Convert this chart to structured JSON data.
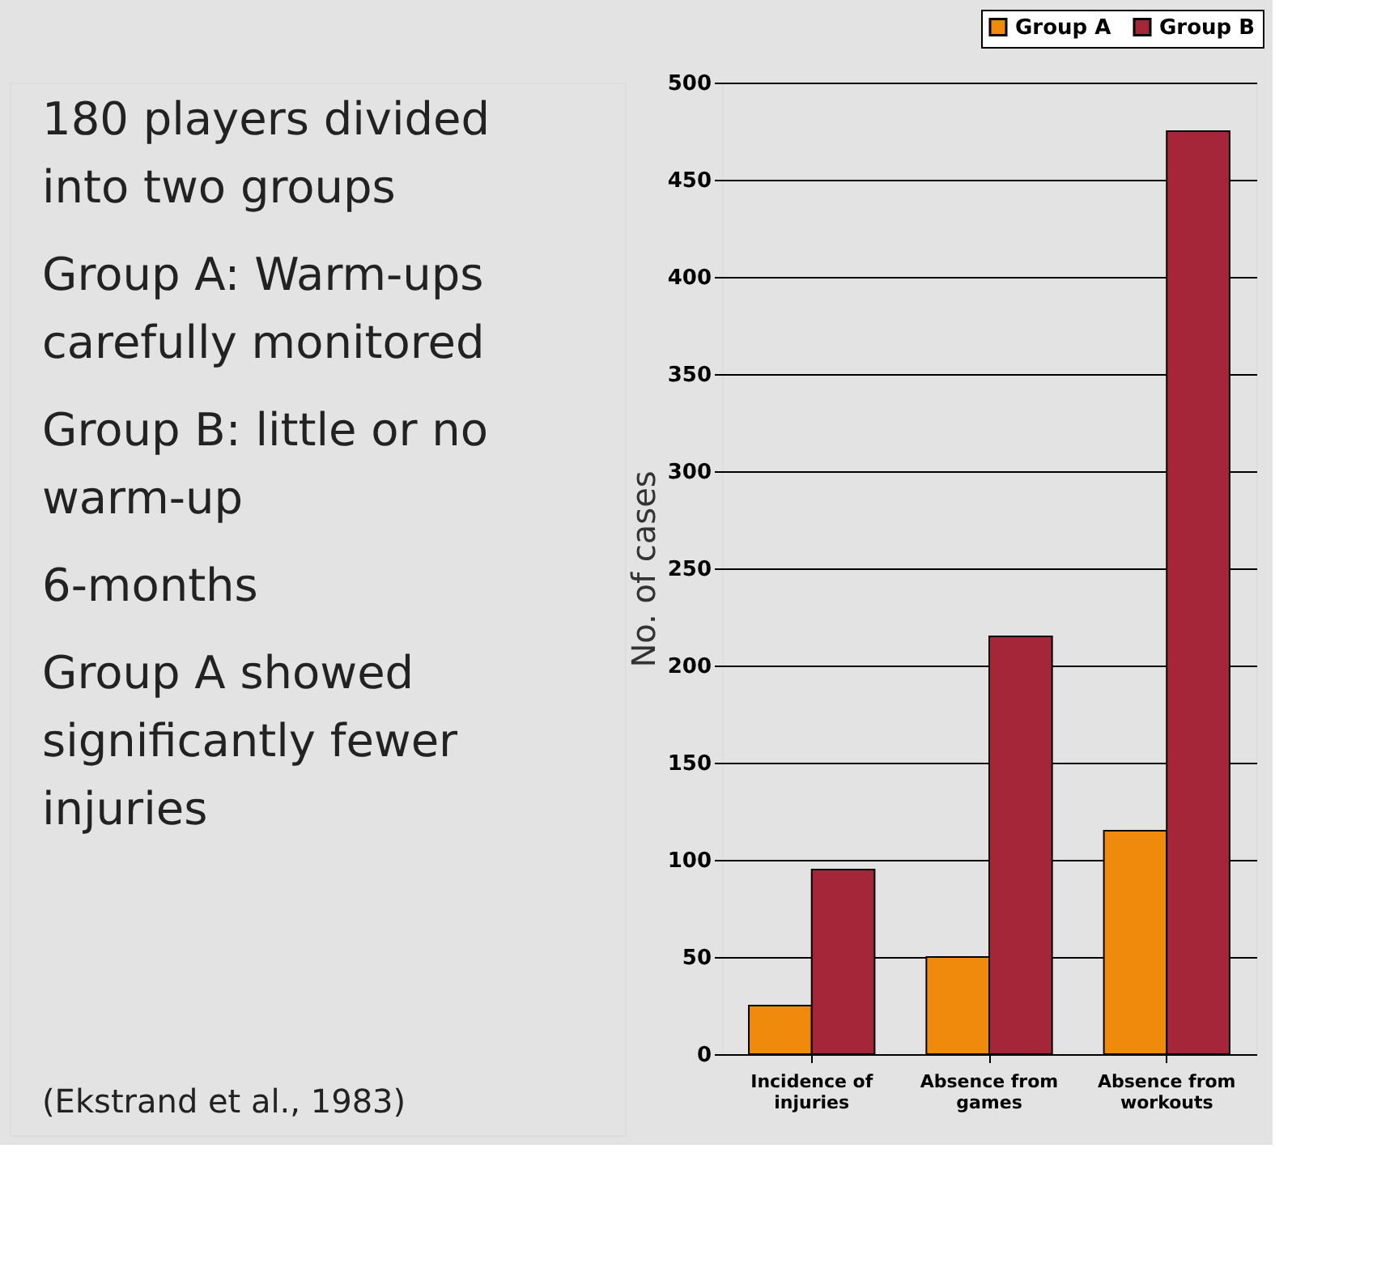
{
  "chart_data": {
    "type": "bar",
    "ylabel": "No. of cases",
    "categories": [
      "Incidence of injuries",
      "Absence from games",
      "Absence from workouts"
    ],
    "series": [
      {
        "name": "Group A",
        "color": "#f08a0c",
        "values": [
          25,
          50,
          115
        ]
      },
      {
        "name": "Group B",
        "color": "#a52638",
        "values": [
          95,
          215,
          475
        ]
      }
    ],
    "ylim": [
      0,
      500
    ],
    "yticks": [
      0,
      50,
      100,
      150,
      200,
      250,
      300,
      350,
      400,
      450,
      500
    ],
    "grid": "y",
    "legend": "top right",
    "annotations": [
      "180 players divided into two groups",
      "Group A: Warm-ups carefully monitored",
      "Group B: little or no warm-up",
      "6-months",
      "Group A showed significantly fewer injuries",
      "(Ekstrand et al., 1983)"
    ]
  }
}
